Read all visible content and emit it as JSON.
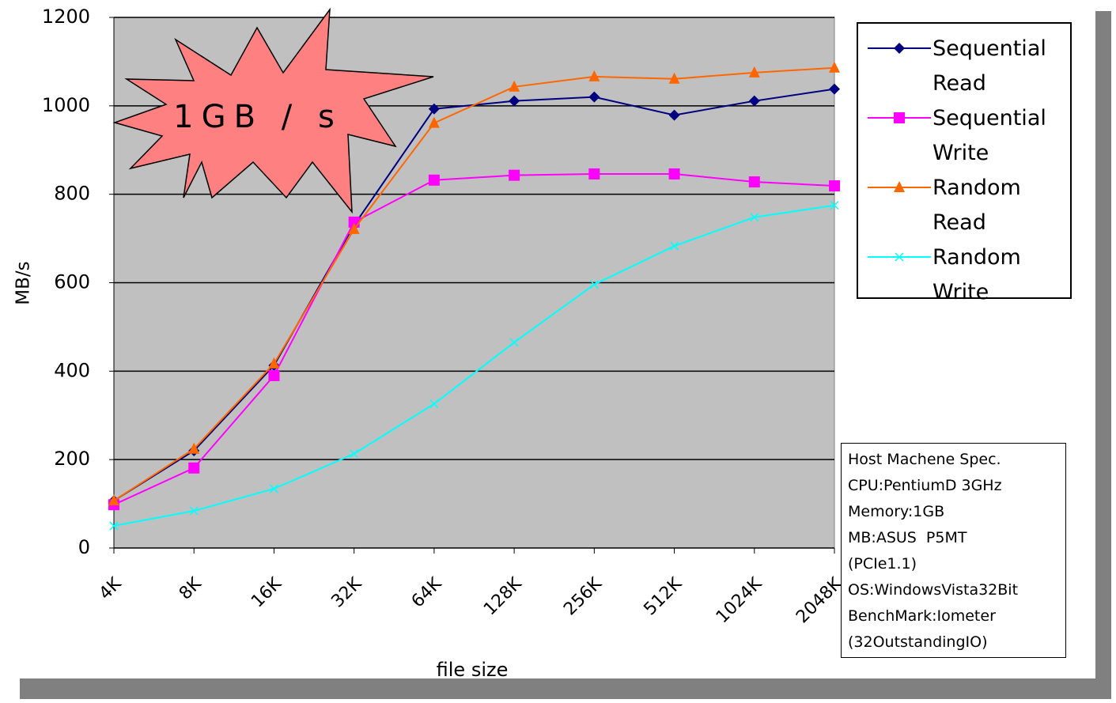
{
  "chart_data": {
    "type": "line",
    "ylabel": "MB/s",
    "xlabel": "file size",
    "categories": [
      "4K",
      "8K",
      "16K",
      "32K",
      "64K",
      "128K",
      "256K",
      "512K",
      "1024K",
      "2048K"
    ],
    "ylim": [
      0,
      1200
    ],
    "yticks": [
      0,
      200,
      400,
      600,
      800,
      1000,
      1200
    ],
    "grid": true,
    "series": [
      {
        "name": "Sequential Read",
        "color": "#000080",
        "marker": "diamond",
        "values": [
          107,
          220,
          413,
          730,
          993,
          1011,
          1020,
          979,
          1011,
          1038
        ]
      },
      {
        "name": "Sequential Write",
        "color": "#ff00ff",
        "marker": "square",
        "values": [
          98,
          181,
          390,
          737,
          832,
          843,
          846,
          846,
          828,
          819
        ]
      },
      {
        "name": "Random Read",
        "color": "#ff6600",
        "marker": "triangle",
        "values": [
          107,
          224,
          417,
          721,
          961,
          1043,
          1066,
          1061,
          1075,
          1086
        ]
      },
      {
        "name": "Random Write",
        "color": "#00ffff",
        "marker": "x",
        "values": [
          50,
          84,
          134,
          213,
          326,
          465,
          596,
          683,
          748,
          775
        ]
      }
    ],
    "callout": "1GB / s",
    "spec_box": [
      "Host Machene Spec.",
      "CPU:PentiumD 3GHz",
      "Memory:1GB",
      "MB:ASUS  P5MT",
      "(PCIe1.1)",
      "OS:WindowsVista32Bit",
      "BenchMark:Iometer",
      "(32OutstandingIO)"
    ]
  }
}
